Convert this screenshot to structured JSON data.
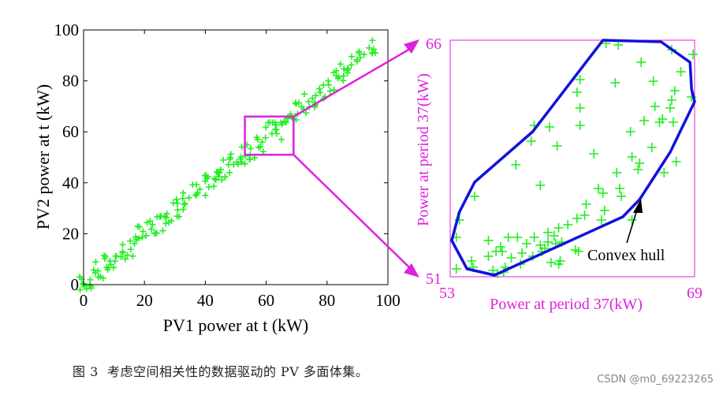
{
  "caption": "图 3  考虑空间相关性的数据驱动的 PV 多面体集。",
  "watermark": "CSDN @m0_69223265",
  "colors": {
    "points": "#22ee22",
    "hull": "#1111dd",
    "zoom": "#dd22dd",
    "axis": "#000000"
  },
  "chart_data": [
    {
      "type": "scatter",
      "xlabel": "PV1 power at t (kW)",
      "ylabel": "PV2 power at t (kW)",
      "xlim": [
        0,
        100
      ],
      "ylim": [
        0,
        100
      ],
      "xticks": [
        "0",
        "20",
        "40",
        "60",
        "80",
        "100"
      ],
      "yticks": [
        "0",
        "20",
        "40",
        "60",
        "80",
        "100"
      ],
      "points_trend": [
        [
          0,
          0
        ],
        [
          2,
          2
        ],
        [
          5,
          5
        ],
        [
          8,
          8
        ],
        [
          10,
          10
        ],
        [
          13,
          13
        ],
        [
          16,
          15
        ],
        [
          19,
          19
        ],
        [
          22,
          22
        ],
        [
          25,
          24
        ],
        [
          28,
          28
        ],
        [
          31,
          30
        ],
        [
          34,
          33
        ],
        [
          37,
          36
        ],
        [
          40,
          39
        ],
        [
          43,
          42
        ],
        [
          46,
          45
        ],
        [
          49,
          48
        ],
        [
          52,
          50
        ],
        [
          55,
          53
        ],
        [
          58,
          56
        ],
        [
          61,
          60
        ],
        [
          64,
          62
        ],
        [
          67,
          65
        ],
        [
          70,
          68
        ],
        [
          73,
          71
        ],
        [
          76,
          73
        ],
        [
          79,
          77
        ],
        [
          82,
          80
        ],
        [
          85,
          83
        ],
        [
          88,
          86
        ],
        [
          91,
          89
        ],
        [
          95,
          93
        ]
      ],
      "spread_band_kw": 4,
      "outliers": [
        [
          48,
          44
        ],
        [
          52,
          54
        ],
        [
          63,
          61
        ],
        [
          40,
          35
        ],
        [
          65,
          57
        ]
      ],
      "highlight_box": {
        "x": [
          53,
          69
        ],
        "y": [
          51,
          66
        ]
      }
    },
    {
      "type": "scatter",
      "xlabel": "Power at period 37(kW)",
      "ylabel": "Power at period 37(kW)",
      "xlim": [
        53,
        69
      ],
      "ylim": [
        51,
        66
      ],
      "xticks": [
        "53",
        "69"
      ],
      "yticks": [
        "51",
        "66"
      ],
      "points": [
        [
          63.2,
          65.8
        ],
        [
          64.0,
          65.7
        ],
        [
          67.5,
          65.4
        ],
        [
          65.5,
          64.6
        ],
        [
          68.1,
          64.0
        ],
        [
          66.3,
          63.4
        ],
        [
          61.5,
          63.5
        ],
        [
          63.8,
          63.3
        ],
        [
          67.7,
          62.8
        ],
        [
          61.3,
          62.7
        ],
        [
          67.5,
          62.2
        ],
        [
          68.8,
          62.4
        ],
        [
          66.4,
          61.8
        ],
        [
          61.5,
          61.7
        ],
        [
          67.4,
          61.7
        ],
        [
          66.9,
          61.0
        ],
        [
          65.7,
          60.9
        ],
        [
          66.7,
          60.8
        ],
        [
          67.6,
          60.8
        ],
        [
          58.5,
          60.6
        ],
        [
          59.5,
          60.5
        ],
        [
          61.5,
          60.6
        ],
        [
          64.8,
          60.2
        ],
        [
          58.3,
          59.6
        ],
        [
          60.0,
          59.3
        ],
        [
          62.4,
          58.8
        ],
        [
          66.2,
          59.2
        ],
        [
          64.9,
          58.6
        ],
        [
          65.4,
          58.2
        ],
        [
          67.8,
          58.3
        ],
        [
          57.3,
          58.1
        ],
        [
          65.3,
          57.8
        ],
        [
          63.9,
          57.6
        ],
        [
          67.0,
          57.6
        ],
        [
          58.9,
          56.8
        ],
        [
          62.7,
          56.6
        ],
        [
          64.1,
          56.6
        ],
        [
          63.0,
          56.3
        ],
        [
          64.2,
          56.1
        ],
        [
          54.6,
          56.1
        ],
        [
          61.9,
          55.6
        ],
        [
          63.1,
          55.2
        ],
        [
          61.8,
          54.9
        ],
        [
          62.9,
          54.6
        ],
        [
          61.3,
          54.7
        ],
        [
          60.7,
          54.3
        ],
        [
          60.1,
          54.1
        ],
        [
          64.9,
          54.6
        ],
        [
          59.4,
          53.8
        ],
        [
          58.5,
          53.5
        ],
        [
          59.8,
          53.6
        ],
        [
          56.8,
          53.5
        ],
        [
          57.4,
          53.5
        ],
        [
          58.0,
          53.1
        ],
        [
          59.4,
          53.2
        ],
        [
          55.5,
          53.3
        ],
        [
          56.3,
          52.9
        ],
        [
          59.2,
          52.8
        ],
        [
          58.9,
          53.0
        ],
        [
          60.3,
          53.2
        ],
        [
          59.9,
          53.1
        ],
        [
          57.7,
          52.5
        ],
        [
          59.0,
          52.6
        ],
        [
          61.2,
          52.7
        ],
        [
          56.4,
          52.6
        ],
        [
          57.0,
          52.2
        ],
        [
          58.4,
          52.3
        ],
        [
          60.2,
          52.0
        ],
        [
          61.4,
          52.6
        ],
        [
          55.5,
          52.3
        ],
        [
          57.6,
          51.8
        ],
        [
          60.1,
          51.8
        ],
        [
          54.5,
          51.6
        ],
        [
          56.1,
          51.2
        ],
        [
          56.5,
          51.3
        ],
        [
          55.8,
          51.4
        ],
        [
          56.6,
          51.6
        ],
        [
          59.6,
          51.9
        ],
        [
          54.4,
          52.0
        ],
        [
          56.0,
          52.6
        ],
        [
          53.4,
          51.5
        ],
        [
          53.4,
          53.5
        ],
        [
          53.6,
          54.6
        ],
        [
          68.9,
          65.1
        ]
      ],
      "hull": [
        [
          63.0,
          66.0
        ],
        [
          66.8,
          65.9
        ],
        [
          68.7,
          64.6
        ],
        [
          68.8,
          62.9
        ],
        [
          69.0,
          62.1
        ],
        [
          67.4,
          58.9
        ],
        [
          65.4,
          55.9
        ],
        [
          64.3,
          54.8
        ],
        [
          55.9,
          51.1
        ],
        [
          54.1,
          51.5
        ],
        [
          53.1,
          53.3
        ],
        [
          53.6,
          55.1
        ],
        [
          54.6,
          57.0
        ],
        [
          58.4,
          60.2
        ]
      ],
      "annotation": {
        "text": "Convex hull",
        "point": [
          65.0,
          55.1
        ]
      }
    }
  ]
}
